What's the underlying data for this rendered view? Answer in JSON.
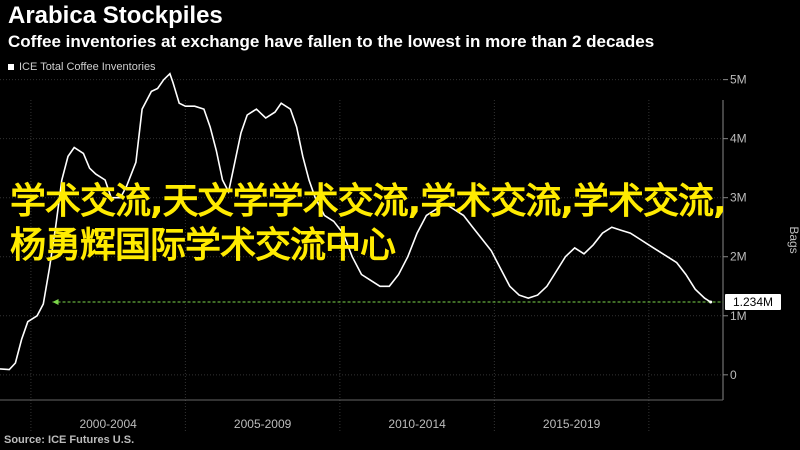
{
  "header": {
    "title": "Arabica Stockpiles",
    "subtitle": "Coffee inventories at exchange have fallen to the lowest in more than 2 decades"
  },
  "legend": {
    "label": "ICE Total Coffee Inventories"
  },
  "source": "Source: ICE Futures U.S.",
  "overlay_text": "学术交流,天文学学术交流,学术交流,学术交流,杨勇辉国际学术交流中心",
  "colors": {
    "background": "#000000",
    "line": "#ffffff",
    "dashed": "#7bd64a",
    "overlay": "#ffeb00",
    "axis_text": "#bcbcbc"
  },
  "chart_data": {
    "type": "line",
    "title": "Arabica Stockpiles",
    "subtitle": "Coffee inventories at exchange have fallen to the lowest in more than 2 decades",
    "ylabel": "Bags",
    "ylim": [
      0,
      5.4
    ],
    "y_ticks": [
      "0",
      "1M",
      "2M",
      "3M",
      "4M",
      "5M"
    ],
    "y_tick_values": [
      0,
      1,
      2,
      3,
      4,
      5
    ],
    "x_range": [
      1999.0,
      2022.4
    ],
    "x_tick_labels": [
      "2000-2004",
      "2005-2009",
      "2010-2014",
      "2015-2019"
    ],
    "x_tick_centers": [
      2002.5,
      2007.5,
      2012.5,
      2017.5
    ],
    "x_gridlines": [
      2000,
      2005,
      2010,
      2015,
      2020
    ],
    "series": [
      {
        "name": "ICE Total Coffee Inventories",
        "points": [
          [
            1999.0,
            0.1
          ],
          [
            1999.3,
            0.09
          ],
          [
            1999.5,
            0.2
          ],
          [
            1999.7,
            0.6
          ],
          [
            1999.9,
            0.9
          ],
          [
            2000.2,
            1.0
          ],
          [
            2000.4,
            1.2
          ],
          [
            2000.6,
            1.8
          ],
          [
            2000.8,
            2.5
          ],
          [
            2001.0,
            3.3
          ],
          [
            2001.2,
            3.7
          ],
          [
            2001.4,
            3.85
          ],
          [
            2001.7,
            3.75
          ],
          [
            2001.9,
            3.5
          ],
          [
            2002.1,
            3.4
          ],
          [
            2002.4,
            3.3
          ],
          [
            2002.6,
            3.0
          ],
          [
            2002.9,
            3.0
          ],
          [
            2003.1,
            3.2
          ],
          [
            2003.4,
            3.6
          ],
          [
            2003.6,
            4.5
          ],
          [
            2003.9,
            4.8
          ],
          [
            2004.1,
            4.85
          ],
          [
            2004.3,
            5.0
          ],
          [
            2004.5,
            5.1
          ],
          [
            2004.6,
            4.95
          ],
          [
            2004.8,
            4.6
          ],
          [
            2005.0,
            4.55
          ],
          [
            2005.3,
            4.55
          ],
          [
            2005.6,
            4.5
          ],
          [
            2005.8,
            4.2
          ],
          [
            2006.0,
            3.8
          ],
          [
            2006.2,
            3.3
          ],
          [
            2006.4,
            3.1
          ],
          [
            2006.6,
            3.6
          ],
          [
            2006.8,
            4.1
          ],
          [
            2007.0,
            4.4
          ],
          [
            2007.3,
            4.5
          ],
          [
            2007.6,
            4.35
          ],
          [
            2007.9,
            4.45
          ],
          [
            2008.1,
            4.6
          ],
          [
            2008.4,
            4.5
          ],
          [
            2008.6,
            4.2
          ],
          [
            2008.8,
            3.7
          ],
          [
            2009.0,
            3.3
          ],
          [
            2009.2,
            3.0
          ],
          [
            2009.5,
            2.7
          ],
          [
            2009.8,
            2.6
          ],
          [
            2010.1,
            2.4
          ],
          [
            2010.4,
            2.0
          ],
          [
            2010.7,
            1.7
          ],
          [
            2011.0,
            1.6
          ],
          [
            2011.3,
            1.5
          ],
          [
            2011.6,
            1.5
          ],
          [
            2011.9,
            1.7
          ],
          [
            2012.2,
            2.0
          ],
          [
            2012.5,
            2.4
          ],
          [
            2012.8,
            2.7
          ],
          [
            2013.1,
            2.8
          ],
          [
            2013.4,
            2.9
          ],
          [
            2013.7,
            2.8
          ],
          [
            2014.0,
            2.7
          ],
          [
            2014.3,
            2.5
          ],
          [
            2014.6,
            2.3
          ],
          [
            2014.9,
            2.1
          ],
          [
            2015.2,
            1.8
          ],
          [
            2015.5,
            1.5
          ],
          [
            2015.8,
            1.35
          ],
          [
            2016.1,
            1.3
          ],
          [
            2016.4,
            1.35
          ],
          [
            2016.7,
            1.5
          ],
          [
            2017.0,
            1.75
          ],
          [
            2017.3,
            2.0
          ],
          [
            2017.6,
            2.15
          ],
          [
            2017.9,
            2.05
          ],
          [
            2018.2,
            2.2
          ],
          [
            2018.5,
            2.4
          ],
          [
            2018.8,
            2.5
          ],
          [
            2019.1,
            2.45
          ],
          [
            2019.4,
            2.4
          ],
          [
            2019.7,
            2.3
          ],
          [
            2020.0,
            2.2
          ],
          [
            2020.3,
            2.1
          ],
          [
            2020.6,
            2.0
          ],
          [
            2020.9,
            1.9
          ],
          [
            2021.2,
            1.7
          ],
          [
            2021.5,
            1.45
          ],
          [
            2021.8,
            1.3
          ],
          [
            2022.0,
            1.234
          ]
        ]
      }
    ],
    "reference_line": {
      "value": 1.234,
      "label": "1.234M",
      "from_x": 2000.7,
      "style": "dashed"
    },
    "last_value_label": "1.234M",
    "grid": true,
    "legend_position": "top-left"
  }
}
